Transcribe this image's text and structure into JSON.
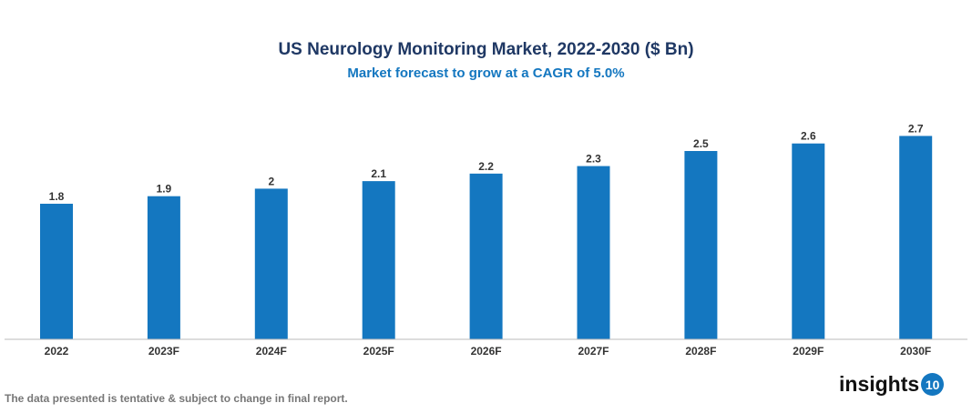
{
  "chart_data": {
    "type": "bar",
    "title": "US Neurology Monitoring Market, 2022-2030 ($ Bn)",
    "subtitle": "Market forecast to grow at a CAGR of 5.0%",
    "categories": [
      "2022",
      "2023F",
      "2024F",
      "2025F",
      "2026F",
      "2027F",
      "2028F",
      "2029F",
      "2030F"
    ],
    "values": [
      1.8,
      1.9,
      2,
      2.1,
      2.2,
      2.3,
      2.5,
      2.6,
      2.7
    ],
    "data_labels": [
      "1.8",
      "1.9",
      "2",
      "2.1",
      "2.2",
      "2.3",
      "2.5",
      "2.6",
      "2.7"
    ],
    "xlabel": "",
    "ylabel": "",
    "ylim": [
      0,
      2.7
    ],
    "grid": false,
    "bar_color": "#1477c0"
  },
  "footnote": "The data presented is tentative & subject to change in final report.",
  "logo": {
    "text": "insights",
    "badge": "10"
  }
}
